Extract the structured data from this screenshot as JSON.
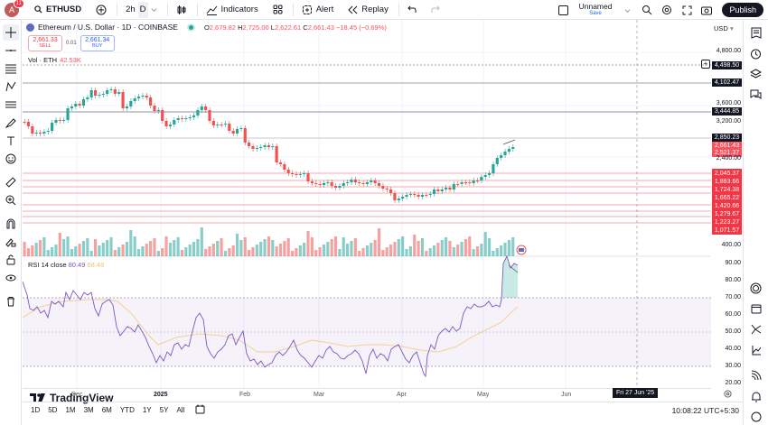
{
  "topbar": {
    "avatar_letter": "A",
    "notif_count": "11",
    "symbol": "ETHUSD",
    "interval_2h": "2h",
    "interval_selected": "D",
    "indicators_label": "Indicators",
    "alert_label": "Alert",
    "replay_label": "Replay",
    "layout_name": "Unnamed",
    "save_label": "Save",
    "publish_label": "Publish"
  },
  "legend": {
    "title": "Ethereum / U.S. Dollar · 1D · COINBASE",
    "o_label": "O",
    "o": "2,679.82",
    "h_label": "H",
    "h": "2,725.00",
    "l_label": "L",
    "l": "2,622.61",
    "c_label": "C",
    "c": "2,661.43",
    "change": "−18.45 (−0.69%)",
    "sell_price": "2,661.33",
    "sell_label": "SELL",
    "spread": "0.01",
    "buy_price": "2,661.34",
    "buy_label": "BUY",
    "vol_label": "Vol · ETH",
    "vol_value": "42.53K"
  },
  "rsi": {
    "label": "RSI 14 close",
    "value": "80.49",
    "ma_value": "68.48"
  },
  "price_axis": {
    "currency": "USD",
    "labels": [
      "4,800.00",
      "3,600.00",
      "3,200.00",
      "2,400.00",
      "400.00"
    ],
    "tags": {
      "t4498": "4,498.50",
      "t4102": "4,102.47",
      "t3444": "3,444.85",
      "t2850": "2,850.23",
      "t2661": "2,661.43",
      "t2521": "2,521.37",
      "t2045": "2,045.37",
      "t1883": "1,883.66",
      "t1724": "1,724.38",
      "t1665": "1,665.22",
      "t1420": "1,420.66",
      "t1279": "1,279.67",
      "t1223": "1,223.27",
      "t1071": "1,071.57"
    },
    "rsi_labels": [
      "90.00",
      "80.00",
      "70.00",
      "60.00",
      "50.00",
      "40.00",
      "30.00",
      "20.00"
    ]
  },
  "time_axis": {
    "labels": [
      "Dec",
      "2025",
      "Feb",
      "Mar",
      "Apr",
      "May",
      "Jun"
    ],
    "crosshair_date": "Fri 27 Jun '25"
  },
  "bottombar": {
    "ranges": [
      "1D",
      "5D",
      "1M",
      "3M",
      "6M",
      "YTD",
      "1Y",
      "5Y",
      "All"
    ],
    "time": "10:08:22 UTC+5:30"
  },
  "branding": {
    "logo_text": "TradingView"
  },
  "colors": {
    "up": "#26a69a",
    "down": "#ef5350",
    "rsi_line": "#7e57c2",
    "rsi_ma": "#f5c26b",
    "level_line": "#f7a8ae",
    "tag_red": "#f23645"
  }
}
